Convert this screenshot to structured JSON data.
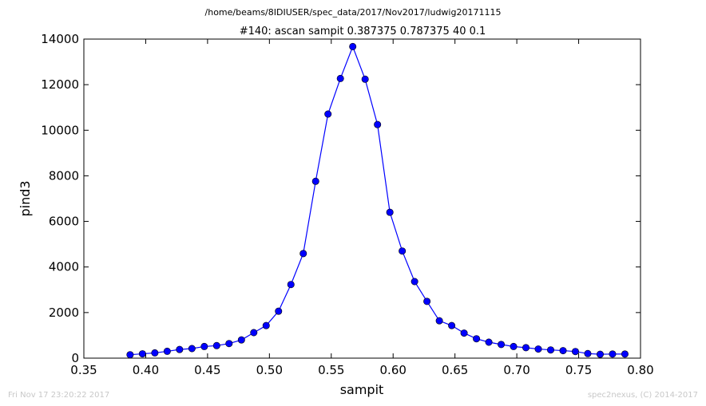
{
  "suptitle": "/home/beams/8IDIUSER/spec_data/2017/Nov2017/ludwig20171115",
  "footer": {
    "timestamp": "Fri Nov 17 23:20:22 2017",
    "credit": "spec2nexus, (C) 2014-2017"
  },
  "chart_data": {
    "type": "line",
    "title": "#140: ascan  sampit 0.387375 0.787375  40 0.1",
    "xlabel": "sampit",
    "ylabel": "pind3",
    "xlim": [
      0.35,
      0.8
    ],
    "ylim": [
      0,
      14000
    ],
    "xticks": [
      "0.35",
      "0.40",
      "0.45",
      "0.50",
      "0.55",
      "0.60",
      "0.65",
      "0.70",
      "0.75",
      "0.80"
    ],
    "yticks": [
      "0",
      "2000",
      "4000",
      "6000",
      "8000",
      "10000",
      "12000",
      "14000"
    ],
    "grid": false,
    "color": "#0000ff",
    "marker": "circle",
    "series": [
      {
        "x": [
          0.387375,
          0.397375,
          0.407375,
          0.417375,
          0.427375,
          0.437375,
          0.447375,
          0.457375,
          0.467375,
          0.477375,
          0.487375,
          0.497375,
          0.507375,
          0.517375,
          0.527375,
          0.537375,
          0.547375,
          0.557375,
          0.567375,
          0.577375,
          0.587375,
          0.597375,
          0.607375,
          0.617375,
          0.627375,
          0.637375,
          0.647375,
          0.657375,
          0.667375,
          0.677375,
          0.687375,
          0.697375,
          0.707375,
          0.717375,
          0.727375,
          0.737375,
          0.747375,
          0.757375,
          0.767375,
          0.777375,
          0.787375
        ],
        "y": [
          150,
          190,
          230,
          300,
          380,
          420,
          510,
          550,
          640,
          800,
          1120,
          1430,
          2060,
          3230,
          4590,
          7760,
          10710,
          12270,
          13670,
          12240,
          10250,
          6400,
          4700,
          3360,
          2490,
          1640,
          1430,
          1100,
          850,
          700,
          600,
          510,
          460,
          400,
          360,
          330,
          290,
          200,
          170,
          180,
          180
        ]
      }
    ]
  }
}
